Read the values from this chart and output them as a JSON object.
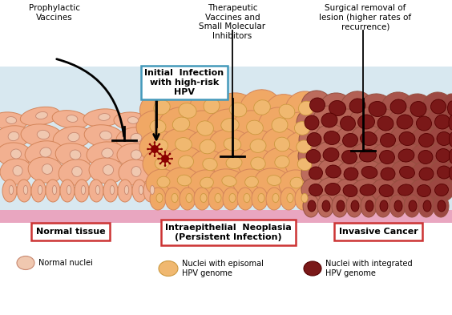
{
  "bg_color": "#ffffff",
  "tissue_bg": "#d8e8f0",
  "normal_cell_color": "#f2b090",
  "normal_cell_edge": "#d4855a",
  "normal_nucleus_color": "#f0c8b0",
  "normal_nucleus_edge": "#c88870",
  "neoplasia_cell_color": "#f0a865",
  "neoplasia_cell_edge": "#d4855a",
  "neoplasia_nucleus_color": "#f0b870",
  "neoplasia_nucleus_edge": "#cc9940",
  "cancer_cell_color": "#c07060",
  "cancer_cell_edge": "#955040",
  "cancer_nucleus_color": "#7a1818",
  "cancer_nucleus_edge": "#550000",
  "base_layer_color": "#f090b0",
  "virus_color": "#8B0000",
  "box_red_color": "#cc3333",
  "box_blue_color": "#4499bb",
  "label_normal": "Normal tissue",
  "label_neoplasia": "Intraepithelial  Neoplasia\n(Persistent Infection)",
  "label_cancer": "Invasive Cancer",
  "legend_normal_nuclei": "Normal nuclei",
  "legend_episomal": "Nuclei with episomal\nHPV genome",
  "legend_integrated": "Nuclei with integrated\nHPV genome",
  "anno_prophylactic": "Prophylactic\nVaccines",
  "anno_infection": "Initial  Infection\nwith high-risk\nHPV",
  "anno_therapeutic": "Therapeutic\nVaccines and\nSmall Molecular\nInhibitors",
  "anno_surgical": "Surgical removal of\nlesion (higher rates of\nrecurrence)"
}
